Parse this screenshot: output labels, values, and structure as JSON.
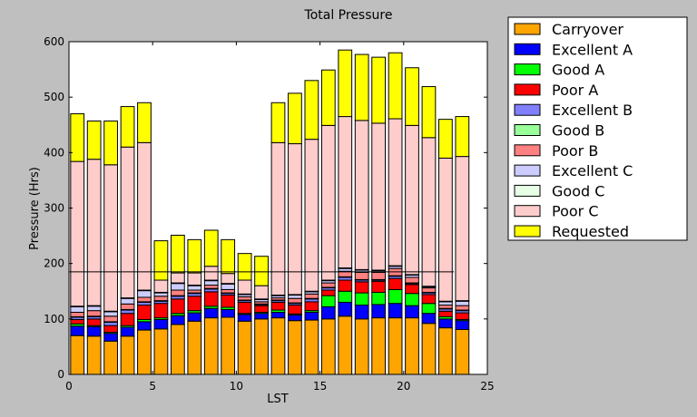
{
  "chart_data": {
    "type": "bar",
    "stacked": true,
    "title": "Total Pressure",
    "xlabel": "LST",
    "ylabel": "Pressure (Hrs)",
    "xlim": [
      0,
      25
    ],
    "ylim": [
      0,
      600
    ],
    "xticks": [
      0,
      5,
      10,
      15,
      20,
      25
    ],
    "yticks": [
      0,
      100,
      200,
      300,
      400,
      500,
      600
    ],
    "grid": false,
    "legend_position": "outside-right",
    "reference_line": 185,
    "x": [
      0.5,
      1.5,
      2.5,
      3.5,
      4.5,
      5.5,
      6.5,
      7.5,
      8.5,
      9.5,
      10.5,
      11.5,
      12.5,
      13.5,
      14.5,
      15.5,
      16.5,
      17.5,
      18.5,
      19.5,
      20.5,
      21.5,
      22.5,
      23.5
    ],
    "series": [
      {
        "name": "Carryover",
        "color": "#ffa500",
        "values": [
          70,
          69,
          60,
          69,
          80,
          82,
          90,
          96,
          102,
          103,
          96,
          100,
          102,
          97,
          98,
          100,
          105,
          100,
          102,
          102,
          102,
          92,
          84,
          81
        ]
      },
      {
        "name": "Excellent A",
        "color": "#0000ff",
        "values": [
          17,
          17,
          14,
          16,
          15,
          17,
          16,
          15,
          17,
          14,
          12,
          10,
          10,
          10,
          14,
          22,
          25,
          25,
          24,
          26,
          22,
          18,
          16,
          16
        ]
      },
      {
        "name": "Good A",
        "color": "#00ff00",
        "values": [
          4,
          2,
          2,
          3,
          4,
          3,
          4,
          4,
          4,
          4,
          2,
          2,
          4,
          2,
          3,
          20,
          20,
          22,
          22,
          25,
          22,
          18,
          4,
          2
        ]
      },
      {
        "name": "Poor A",
        "color": "#ff0000",
        "values": [
          8,
          12,
          12,
          22,
          26,
          26,
          26,
          26,
          26,
          22,
          20,
          12,
          14,
          16,
          16,
          10,
          20,
          20,
          20,
          20,
          16,
          16,
          10,
          12
        ]
      },
      {
        "name": "Excellent B",
        "color": "#8080ff",
        "values": [
          4,
          4,
          6,
          6,
          5,
          4,
          5,
          5,
          5,
          3,
          3,
          2,
          3,
          3,
          5,
          4,
          5,
          3,
          2,
          4,
          2,
          3,
          4,
          4
        ]
      },
      {
        "name": "Good B",
        "color": "#99ff99",
        "values": [
          1,
          1,
          1,
          1,
          1,
          1,
          1,
          1,
          1,
          1,
          1,
          1,
          1,
          1,
          1,
          1,
          1,
          1,
          1,
          1,
          1,
          1,
          1,
          1
        ]
      },
      {
        "name": "Poor B",
        "color": "#ff8080",
        "values": [
          8,
          10,
          10,
          10,
          8,
          8,
          10,
          5,
          6,
          6,
          6,
          4,
          4,
          8,
          8,
          8,
          10,
          13,
          13,
          13,
          10,
          8,
          6,
          8
        ]
      },
      {
        "name": "Excellent C",
        "color": "#ccccff",
        "values": [
          10,
          8,
          8,
          10,
          12,
          6,
          12,
          8,
          8,
          10,
          4,
          4,
          4,
          6,
          4,
          4,
          5,
          4,
          3,
          4,
          4,
          2,
          6,
          8
        ]
      },
      {
        "name": "Good C",
        "color": "#e6ffe6",
        "values": [
          1,
          1,
          1,
          1,
          1,
          1,
          1,
          1,
          1,
          1,
          1,
          1,
          1,
          1,
          1,
          1,
          1,
          1,
          1,
          1,
          1,
          1,
          1,
          1
        ]
      },
      {
        "name": "Poor C",
        "color": "#ffcccc",
        "values": [
          261,
          264,
          264,
          272,
          266,
          22,
          18,
          22,
          25,
          18,
          25,
          24,
          275,
          272,
          274,
          279,
          273,
          269,
          265,
          265,
          269,
          268,
          258,
          260
        ]
      },
      {
        "name": "Requested",
        "color": "#ffff00",
        "values": [
          86,
          69,
          79,
          73,
          72,
          71,
          68,
          60,
          65,
          61,
          48,
          53,
          72,
          91,
          106,
          100,
          120,
          119,
          119,
          119,
          104,
          92,
          70,
          72
        ]
      }
    ]
  }
}
